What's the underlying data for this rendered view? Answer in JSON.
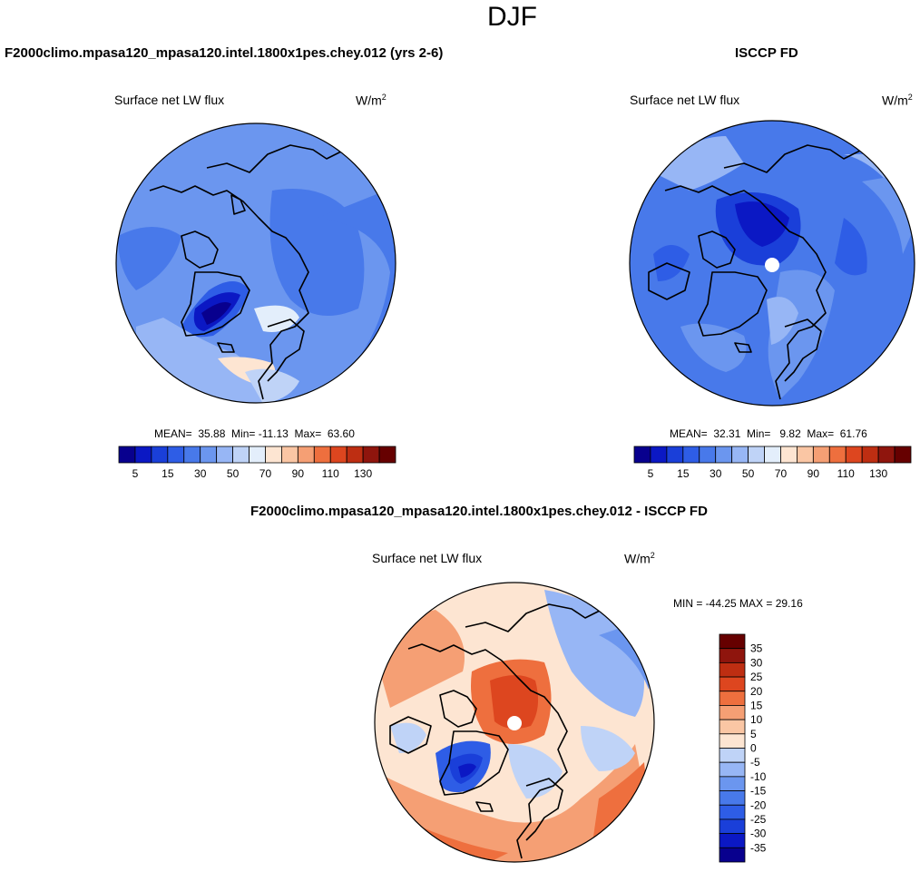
{
  "page_title": "DJF",
  "chart_data": [
    {
      "type": "heatmap",
      "projection": "north-polar-stereographic",
      "title": "F2000climo.mpasa120_mpasa120.intel.1800x1pes.chey.012 (yrs 2-6)",
      "variable": "Surface net LW flux",
      "units_base": "W/m",
      "units_exp": "2",
      "stats_text": "MEAN=  35.88  Min= -11.13  Max=  63.60",
      "mean": 35.88,
      "min": -11.13,
      "max": 63.6,
      "colorbar": {
        "orientation": "horizontal",
        "levels": [
          0,
          5,
          10,
          15,
          20,
          30,
          40,
          50,
          60,
          70,
          80,
          90,
          100,
          110,
          120,
          130
        ],
        "tick_labels": [
          "5",
          "15",
          "30",
          "50",
          "70",
          "90",
          "110",
          "130"
        ],
        "colors": [
          "#08008e",
          "#0b18c4",
          "#1a3fd9",
          "#2e5de6",
          "#4879ea",
          "#6b96ef",
          "#97b6f5",
          "#bfd3f7",
          "#e3eefb",
          "#fde5d2",
          "#fac6a4",
          "#f59f74",
          "#ee6f3e",
          "#dd461f",
          "#be2e12",
          "#8f150d",
          "#660000"
        ]
      }
    },
    {
      "type": "heatmap",
      "projection": "north-polar-stereographic",
      "title": "ISCCP FD",
      "variable": "Surface net LW flux",
      "units_base": "W/m",
      "units_exp": "2",
      "stats_text": "MEAN=  32.31  Min=   9.82  Max=  61.76",
      "mean": 32.31,
      "min": 9.82,
      "max": 61.76,
      "colorbar": {
        "orientation": "horizontal",
        "levels": [
          0,
          5,
          10,
          15,
          20,
          30,
          40,
          50,
          60,
          70,
          80,
          90,
          100,
          110,
          120,
          130
        ],
        "tick_labels": [
          "5",
          "15",
          "30",
          "50",
          "70",
          "90",
          "110",
          "130"
        ],
        "colors": [
          "#08008e",
          "#0b18c4",
          "#1a3fd9",
          "#2e5de6",
          "#4879ea",
          "#6b96ef",
          "#97b6f5",
          "#bfd3f7",
          "#e3eefb",
          "#fde5d2",
          "#fac6a4",
          "#f59f74",
          "#ee6f3e",
          "#dd461f",
          "#be2e12",
          "#8f150d",
          "#660000"
        ]
      }
    },
    {
      "type": "heatmap",
      "projection": "north-polar-stereographic",
      "title": "F2000climo.mpasa120_mpasa120.intel.1800x1pes.chey.012 - ISCCP FD",
      "variable": "Surface net LW flux",
      "units_base": "W/m",
      "units_exp": "2",
      "stats_text": "MIN = -44.25 MAX = 29.16",
      "min": -44.25,
      "max": 29.16,
      "colorbar": {
        "orientation": "vertical",
        "levels": [
          -35,
          -30,
          -25,
          -20,
          -15,
          -10,
          -5,
          0,
          5,
          10,
          15,
          20,
          25,
          30,
          35
        ],
        "tick_labels": [
          "35",
          "30",
          "25",
          "20",
          "15",
          "10",
          "5",
          "0",
          "-5",
          "-10",
          "-15",
          "-20",
          "-25",
          "-30",
          "-35"
        ],
        "colors": [
          "#08008e",
          "#0b18c4",
          "#1a3fd9",
          "#2e5de6",
          "#4879ea",
          "#6b96ef",
          "#97b6f5",
          "#bfd3f7",
          "#fde5d2",
          "#fac6a4",
          "#f59f74",
          "#ee6f3e",
          "#dd461f",
          "#be2e12",
          "#8f150d",
          "#660000"
        ]
      }
    }
  ]
}
